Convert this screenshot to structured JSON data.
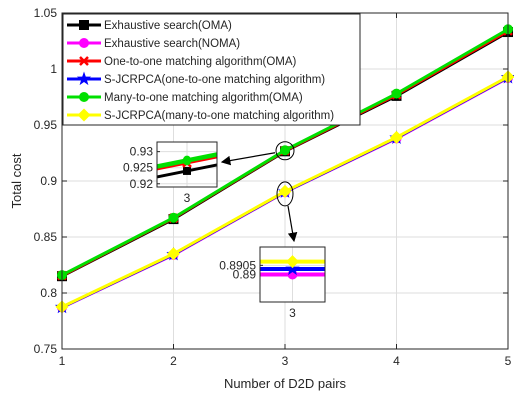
{
  "chart_data": {
    "type": "line",
    "xlabel": "Number of D2D pairs",
    "ylabel": "Total cost",
    "x": [
      1,
      2,
      3,
      4,
      5
    ],
    "xlim": [
      1,
      5
    ],
    "ylim": [
      0.75,
      1.05
    ],
    "xticks": [
      "1",
      "2",
      "3",
      "4",
      "5"
    ],
    "yticks": [
      "0.75",
      "0.8",
      "0.85",
      "0.9",
      "0.95",
      "1",
      "1.05"
    ],
    "grid": true,
    "legend_position": "top-left",
    "series": [
      {
        "name": "Exhaustive search(OMA)",
        "color": "#000000",
        "marker": "square",
        "values": [
          0.815,
          0.866,
          0.9265,
          0.976,
          1.033
        ]
      },
      {
        "name": "Exhaustive search(NOMA)",
        "color": "#ff00ff",
        "marker": "circle",
        "values": [
          0.787,
          0.834,
          0.89,
          0.938,
          0.992
        ]
      },
      {
        "name": "One-to-one matching algorithm(OMA)",
        "color": "#ff0000",
        "marker": "x",
        "values": [
          0.8155,
          0.8668,
          0.927,
          0.977,
          1.034
        ]
      },
      {
        "name": "S-JCRPCA(one-to-one matching algorithm)",
        "color": "#0000ff",
        "marker": "star",
        "values": [
          0.7873,
          0.8345,
          0.8903,
          0.9385,
          0.9925
        ]
      },
      {
        "name": "Many-to-one matching algorithm(OMA)",
        "color": "#00e000",
        "marker": "circle",
        "values": [
          0.816,
          0.8672,
          0.9275,
          0.978,
          1.0355
        ]
      },
      {
        "name": "S-JCRPCA(many-to-one matching algorithm)",
        "color": "#ffff00",
        "marker": "diamond",
        "values": [
          0.7876,
          0.835,
          0.8907,
          0.939,
          0.993
        ]
      }
    ],
    "inset_upper": {
      "x": 3,
      "ylim": [
        0.919,
        0.933
      ],
      "yticks": [
        "0.93",
        "0.925",
        "0.92"
      ],
      "xtick": "3",
      "values": [
        0.924,
        0.9265,
        0.927,
        0.9275
      ]
    },
    "inset_lower": {
      "x": 3,
      "ylim": [
        0.8885,
        0.8915
      ],
      "yticks": [
        "0.8905",
        "0.89"
      ],
      "xtick": "3",
      "values": [
        0.89,
        0.8903,
        0.8907
      ]
    }
  }
}
